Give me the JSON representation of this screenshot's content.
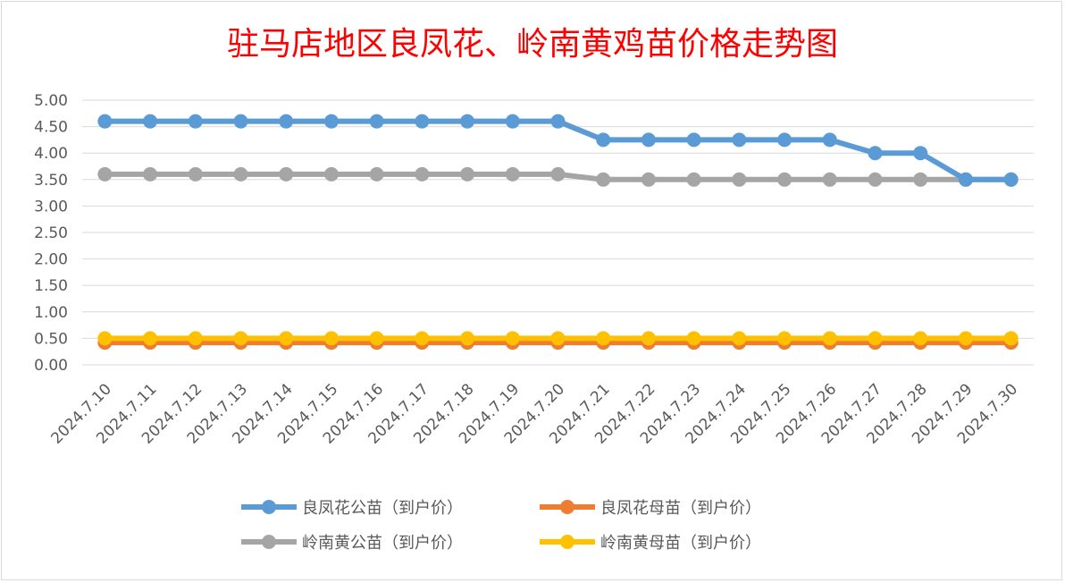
{
  "chart_data": {
    "type": "line",
    "title": "驻马店地区良凤花、岭南黄鸡苗价格走势图",
    "xlabel": "",
    "ylabel": "",
    "ylim": [
      0,
      5
    ],
    "yticks": [
      "0.00",
      "0.50",
      "1.00",
      "1.50",
      "2.00",
      "2.50",
      "3.00",
      "3.50",
      "4.00",
      "4.50",
      "5.00"
    ],
    "grid": true,
    "legend_position": "bottom",
    "categories": [
      "2024.7.10",
      "2024.7.11",
      "2024.7.12",
      "2024.7.13",
      "2024.7.14",
      "2024.7.15",
      "2024.7.16",
      "2024.7.17",
      "2024.7.18",
      "2024.7.19",
      "2024.7.20",
      "2024.7.21",
      "2024.7.22",
      "2024.7.23",
      "2024.7.24",
      "2024.7.25",
      "2024.7.26",
      "2024.7.27",
      "2024.7.28",
      "2024.7.29",
      "2024.7.30"
    ],
    "series": [
      {
        "name": "良凤花公苗（到户价）",
        "color": "#5b9bd5",
        "values": [
          4.6,
          4.6,
          4.6,
          4.6,
          4.6,
          4.6,
          4.6,
          4.6,
          4.6,
          4.6,
          4.6,
          4.25,
          4.25,
          4.25,
          4.25,
          4.25,
          4.25,
          4.0,
          4.0,
          3.5,
          3.5
        ]
      },
      {
        "name": "良凤花母苗（到户价）",
        "color": "#ed7d31",
        "values": [
          0.42,
          0.42,
          0.42,
          0.42,
          0.42,
          0.42,
          0.42,
          0.42,
          0.42,
          0.42,
          0.42,
          0.42,
          0.42,
          0.42,
          0.42,
          0.42,
          0.42,
          0.42,
          0.42,
          0.42,
          0.42
        ]
      },
      {
        "name": "岭南黄公苗（到户价）",
        "color": "#a5a5a5",
        "values": [
          3.6,
          3.6,
          3.6,
          3.6,
          3.6,
          3.6,
          3.6,
          3.6,
          3.6,
          3.6,
          3.6,
          3.5,
          3.5,
          3.5,
          3.5,
          3.5,
          3.5,
          3.5,
          3.5,
          3.5,
          3.5
        ]
      },
      {
        "name": "岭南黄母苗（到户价）",
        "color": "#ffc000",
        "values": [
          0.5,
          0.5,
          0.5,
          0.5,
          0.5,
          0.5,
          0.5,
          0.5,
          0.5,
          0.5,
          0.5,
          0.5,
          0.5,
          0.5,
          0.5,
          0.5,
          0.5,
          0.5,
          0.5,
          0.5,
          0.5
        ]
      }
    ],
    "draw_order": [
      2,
      0,
      1,
      3
    ]
  }
}
